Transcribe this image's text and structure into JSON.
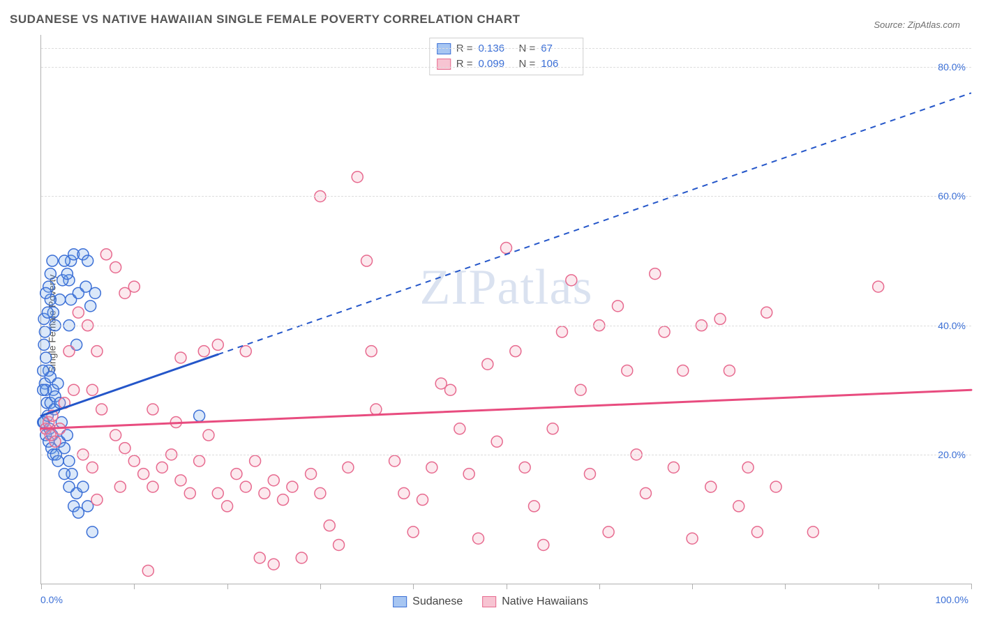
{
  "title": "SUDANESE VS NATIVE HAWAIIAN SINGLE FEMALE POVERTY CORRELATION CHART",
  "source": "Source: ZipAtlas.com",
  "watermark": "ZIPatlas",
  "y_axis_label": "Single Female Poverty",
  "chart": {
    "type": "scatter",
    "background_color": "#ffffff",
    "grid_color": "#dcdcdc",
    "axis_color": "#b0b0b0",
    "tick_label_color": "#3b6fd6",
    "label_fontsize": 14,
    "title_fontsize": 17,
    "title_color": "#555555",
    "xlim": [
      0,
      100
    ],
    "ylim": [
      0,
      85
    ],
    "y_gridlines": [
      20,
      40,
      60,
      80
    ],
    "y_tick_labels": [
      "20.0%",
      "40.0%",
      "60.0%",
      "80.0%"
    ],
    "x_tick_positions": [
      0,
      10,
      20,
      30,
      40,
      50,
      60,
      70,
      80,
      90,
      100
    ],
    "x_min_label": "0.0%",
    "x_max_label": "100.0%",
    "marker_radius": 8,
    "marker_stroke_width": 1.5,
    "marker_fill_opacity": 0.25,
    "series": [
      {
        "name": "Sudanese",
        "color": "#6ea2e8",
        "stroke": "#3b6fd6",
        "legend_swatch_fill": "#a7c6f2",
        "legend_swatch_stroke": "#3b6fd6",
        "R": "0.136",
        "N": "67",
        "trend": {
          "color": "#2456c9",
          "width": 3,
          "dash_after_x": 19,
          "points": [
            [
              0,
              26
            ],
            [
              19,
              35.5
            ],
            [
              100,
              76
            ]
          ]
        },
        "points": [
          [
            0.2,
            25
          ],
          [
            0.3,
            25
          ],
          [
            0.5,
            23
          ],
          [
            0.6,
            28
          ],
          [
            0.8,
            22
          ],
          [
            0.4,
            31
          ],
          [
            0.5,
            30
          ],
          [
            0.7,
            26
          ],
          [
            0.9,
            24
          ],
          [
            1.0,
            28
          ],
          [
            1.2,
            23
          ],
          [
            1.4,
            27
          ],
          [
            0.3,
            41
          ],
          [
            0.5,
            35
          ],
          [
            0.8,
            33
          ],
          [
            1.0,
            32
          ],
          [
            1.3,
            30
          ],
          [
            1.5,
            29
          ],
          [
            1.1,
            21
          ],
          [
            1.3,
            20
          ],
          [
            1.6,
            20
          ],
          [
            1.8,
            19
          ],
          [
            2.0,
            22
          ],
          [
            2.2,
            25
          ],
          [
            2.5,
            21
          ],
          [
            2.8,
            23
          ],
          [
            3.0,
            19
          ],
          [
            3.3,
            17
          ],
          [
            3.5,
            12
          ],
          [
            3.8,
            14
          ],
          [
            4.0,
            11
          ],
          [
            4.5,
            15
          ],
          [
            5.0,
            12
          ],
          [
            5.5,
            8
          ],
          [
            3.0,
            47
          ],
          [
            3.2,
            50
          ],
          [
            3.5,
            51
          ],
          [
            4.5,
            51
          ],
          [
            5.0,
            50
          ],
          [
            3.2,
            44
          ],
          [
            4.0,
            45
          ],
          [
            4.8,
            46
          ],
          [
            5.3,
            43
          ],
          [
            5.8,
            45
          ],
          [
            3.0,
            40
          ],
          [
            3.8,
            37
          ],
          [
            2.0,
            44
          ],
          [
            2.3,
            47
          ],
          [
            2.5,
            50
          ],
          [
            2.8,
            48
          ],
          [
            1.0,
            44
          ],
          [
            1.3,
            42
          ],
          [
            1.5,
            40
          ],
          [
            0.8,
            46
          ],
          [
            1.0,
            48
          ],
          [
            1.2,
            50
          ],
          [
            0.5,
            45
          ],
          [
            0.7,
            42
          ],
          [
            0.3,
            37
          ],
          [
            0.4,
            39
          ],
          [
            0.2,
            33
          ],
          [
            0.2,
            30
          ],
          [
            17.0,
            26
          ],
          [
            1.8,
            31
          ],
          [
            2.0,
            28
          ],
          [
            2.5,
            17
          ],
          [
            3.0,
            15
          ]
        ]
      },
      {
        "name": "Native Hawaiians",
        "color": "#f4a6bb",
        "stroke": "#e76a8f",
        "legend_swatch_fill": "#f7c4d2",
        "legend_swatch_stroke": "#e76a8f",
        "R": "0.099",
        "N": "106",
        "trend": {
          "color": "#e84c7f",
          "width": 3,
          "dash_after_x": 200,
          "points": [
            [
              0,
              24
            ],
            [
              100,
              30
            ]
          ]
        },
        "points": [
          [
            0.5,
            24
          ],
          [
            0.8,
            25
          ],
          [
            1.0,
            23
          ],
          [
            1.2,
            26
          ],
          [
            1.5,
            22
          ],
          [
            2.0,
            24
          ],
          [
            4.0,
            42
          ],
          [
            5.0,
            40
          ],
          [
            6.0,
            36
          ],
          [
            7.0,
            51
          ],
          [
            8.0,
            49
          ],
          [
            9.0,
            45
          ],
          [
            10.0,
            46
          ],
          [
            5.5,
            30
          ],
          [
            6.5,
            27
          ],
          [
            8.0,
            23
          ],
          [
            9.0,
            21
          ],
          [
            10.0,
            19
          ],
          [
            11.0,
            17
          ],
          [
            12.0,
            15
          ],
          [
            13.0,
            18
          ],
          [
            14.0,
            20
          ],
          [
            15.0,
            16
          ],
          [
            16.0,
            14
          ],
          [
            17.0,
            19
          ],
          [
            18.0,
            23
          ],
          [
            19.0,
            14
          ],
          [
            20.0,
            12
          ],
          [
            21.0,
            17
          ],
          [
            22.0,
            15
          ],
          [
            23.0,
            19
          ],
          [
            24.0,
            14
          ],
          [
            25.0,
            16
          ],
          [
            26.0,
            13
          ],
          [
            27.0,
            15
          ],
          [
            28.0,
            4
          ],
          [
            29.0,
            17
          ],
          [
            30.0,
            14
          ],
          [
            31.0,
            9
          ],
          [
            32.0,
            6
          ],
          [
            33.0,
            18
          ],
          [
            34.0,
            63
          ],
          [
            35.0,
            50
          ],
          [
            35.5,
            36
          ],
          [
            36.0,
            27
          ],
          [
            38.0,
            19
          ],
          [
            39.0,
            14
          ],
          [
            40.0,
            8
          ],
          [
            41.0,
            13
          ],
          [
            42.0,
            18
          ],
          [
            43.0,
            31
          ],
          [
            44.0,
            30
          ],
          [
            45.0,
            24
          ],
          [
            46.0,
            17
          ],
          [
            47.0,
            7
          ],
          [
            48.0,
            34
          ],
          [
            49.0,
            22
          ],
          [
            50.0,
            52
          ],
          [
            51.0,
            36
          ],
          [
            52.0,
            18
          ],
          [
            53.0,
            12
          ],
          [
            54.0,
            6
          ],
          [
            55.0,
            24
          ],
          [
            56.0,
            39
          ],
          [
            57.0,
            47
          ],
          [
            58.0,
            30
          ],
          [
            59.0,
            17
          ],
          [
            60.0,
            40
          ],
          [
            61.0,
            8
          ],
          [
            62.0,
            43
          ],
          [
            63.0,
            33
          ],
          [
            64.0,
            20
          ],
          [
            65.0,
            14
          ],
          [
            66.0,
            48
          ],
          [
            67.0,
            39
          ],
          [
            68.0,
            18
          ],
          [
            69.0,
            33
          ],
          [
            70.0,
            7
          ],
          [
            71.0,
            40
          ],
          [
            72.0,
            15
          ],
          [
            73.0,
            41
          ],
          [
            74.0,
            33
          ],
          [
            75.0,
            12
          ],
          [
            76.0,
            18
          ],
          [
            77.0,
            8
          ],
          [
            78.0,
            42
          ],
          [
            79.0,
            15
          ],
          [
            83.0,
            8
          ],
          [
            90.0,
            46
          ],
          [
            11.5,
            2
          ],
          [
            15.0,
            35
          ],
          [
            17.5,
            36
          ],
          [
            25.0,
            3
          ],
          [
            30.0,
            60
          ],
          [
            23.5,
            4
          ],
          [
            6.0,
            13
          ],
          [
            8.5,
            15
          ],
          [
            12.0,
            27
          ],
          [
            14.5,
            25
          ],
          [
            19.0,
            37
          ],
          [
            22.0,
            36
          ],
          [
            4.5,
            20
          ],
          [
            5.5,
            18
          ],
          [
            3.0,
            36
          ],
          [
            3.5,
            30
          ],
          [
            2.5,
            28
          ]
        ]
      }
    ]
  },
  "legend_top_labels": {
    "R": "R =",
    "N": "N ="
  },
  "legend_bottom": [
    {
      "label": "Sudanese",
      "fill": "#a7c6f2",
      "stroke": "#3b6fd6"
    },
    {
      "label": "Native Hawaiians",
      "fill": "#f7c4d2",
      "stroke": "#e76a8f"
    }
  ]
}
